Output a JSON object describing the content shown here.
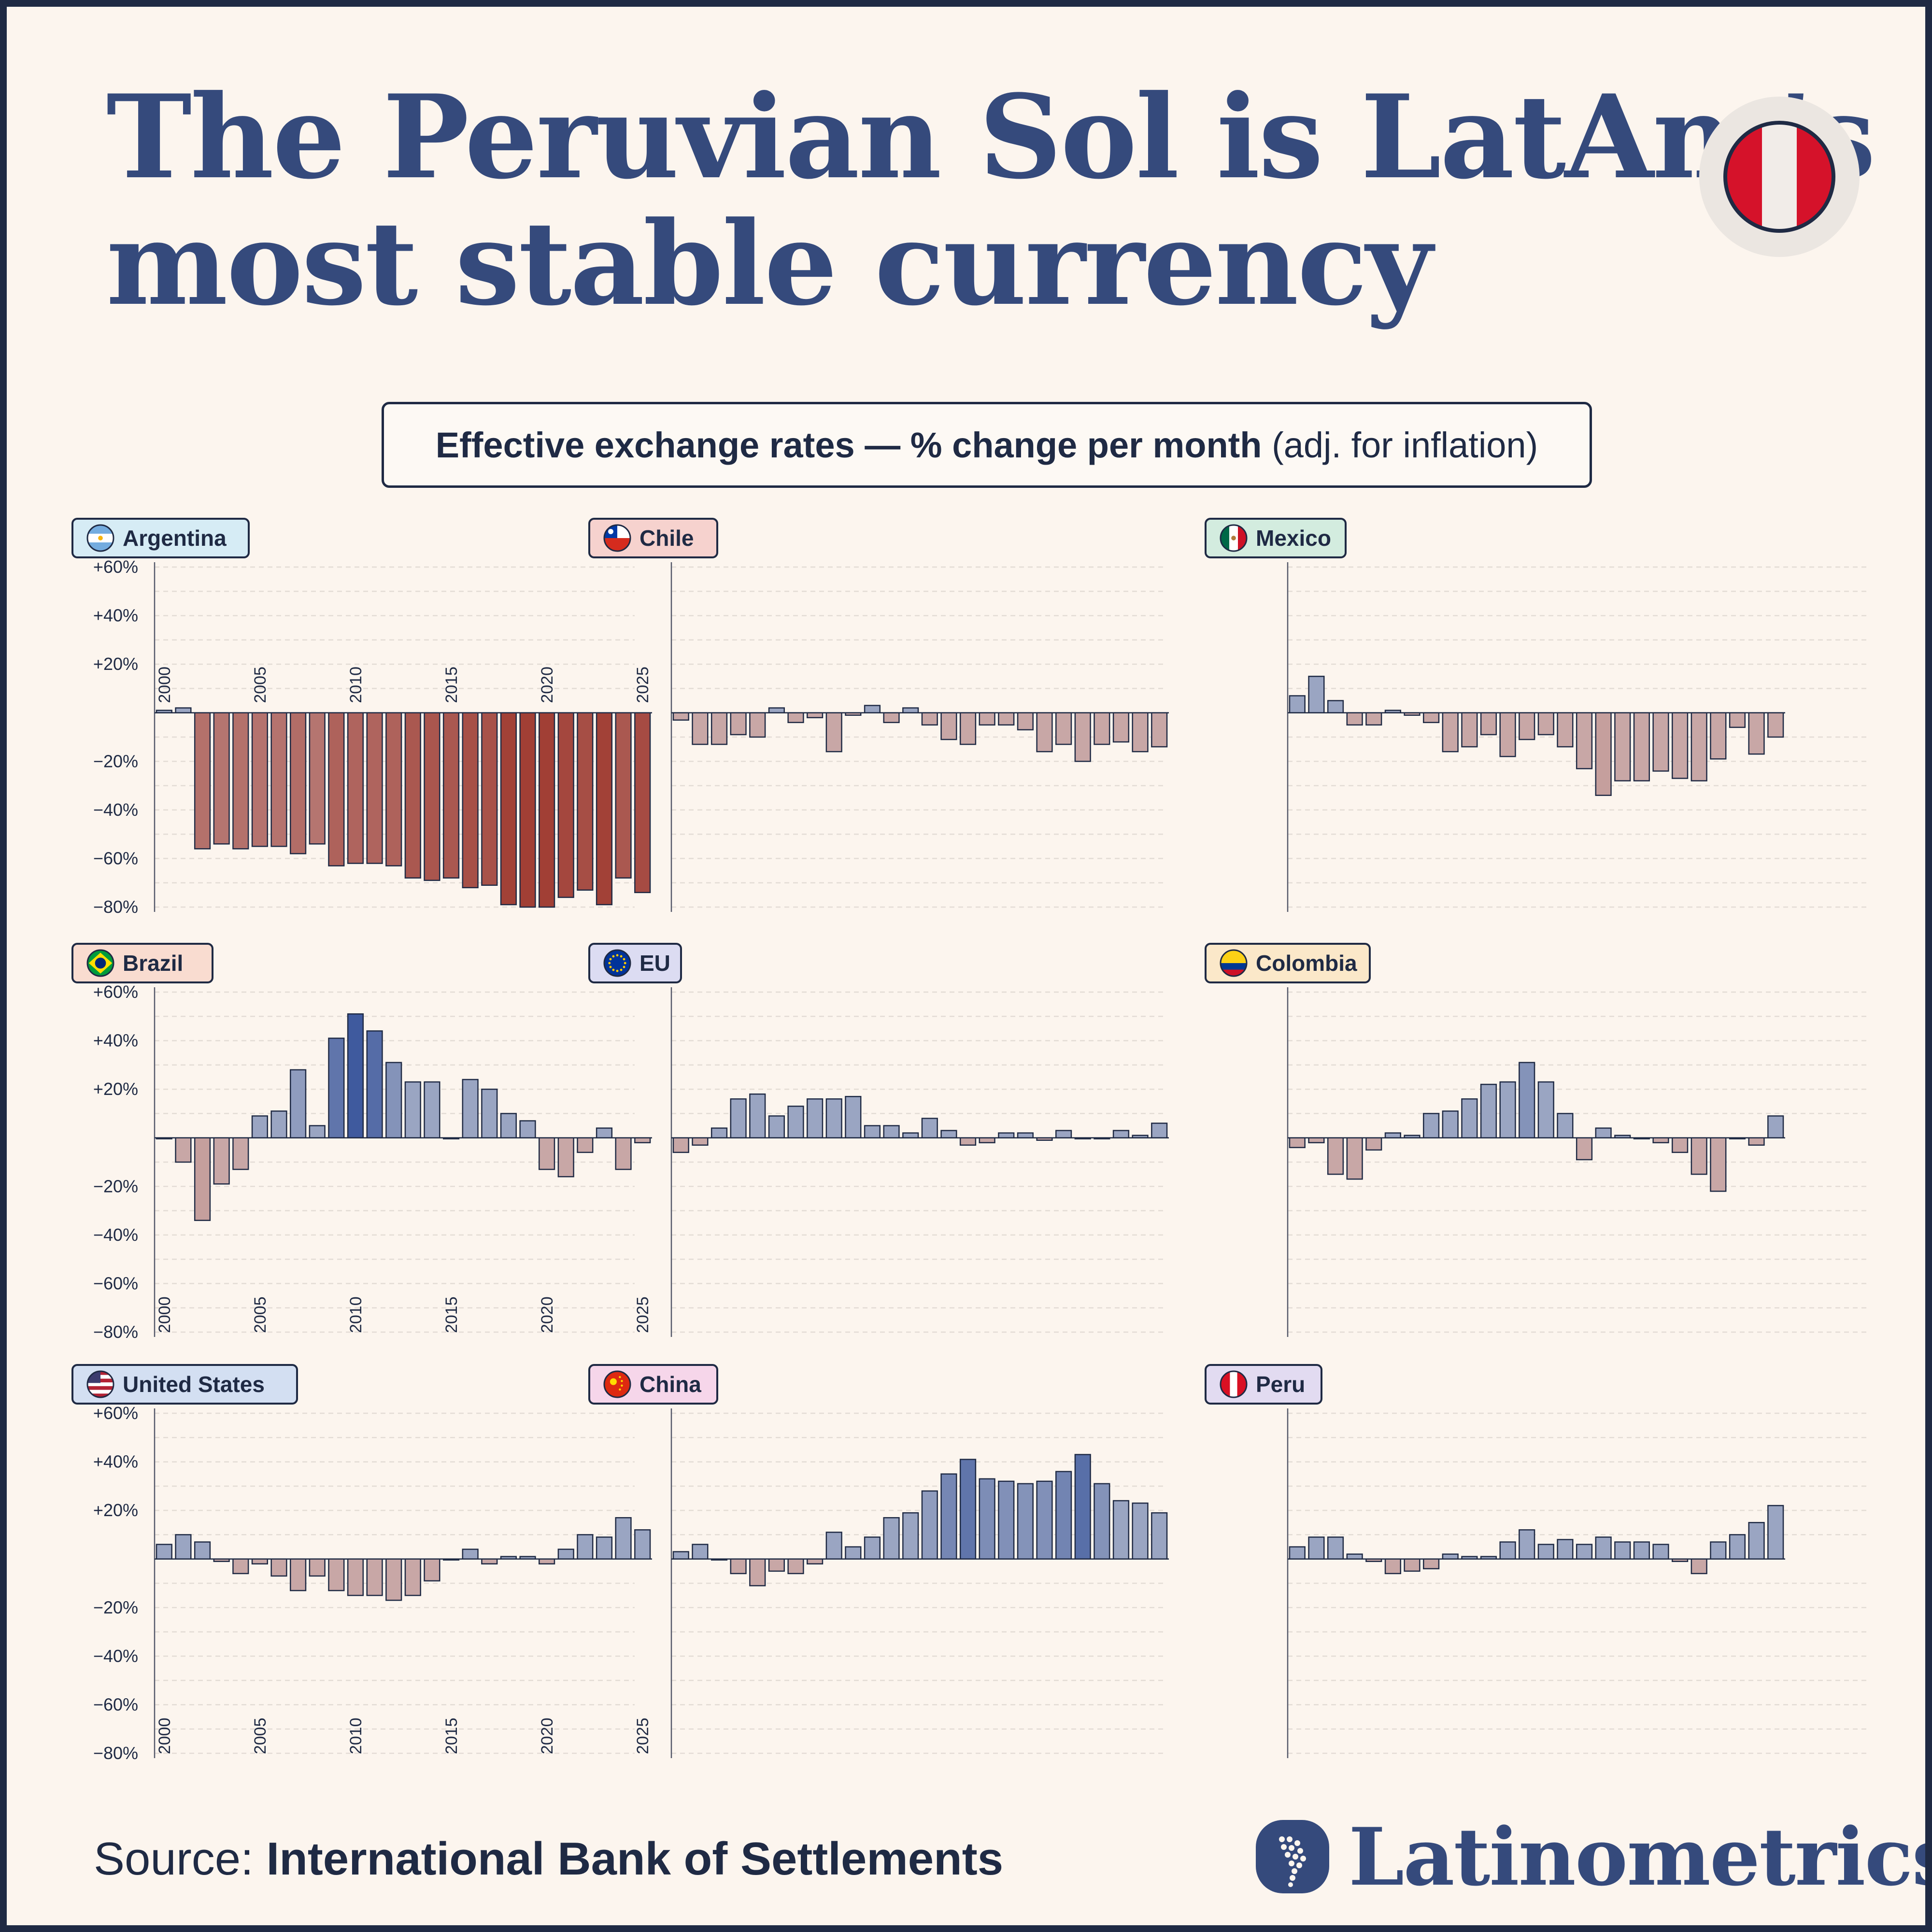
{
  "title": {
    "line1": "The Peruvian Sol is LatAm’s",
    "line2": "most stable currency"
  },
  "subtitle": {
    "bold": "Effective exchange rates — % change per month",
    "normal": "(adj. for inflation)"
  },
  "footer": {
    "source_label": "Source:",
    "source_name": "International Bank of Settlements",
    "brand": "Latinometrics"
  },
  "colors": {
    "positive": "#9aa5c2",
    "positive_strong": "#3f5a9e",
    "negative": "#c8a7a6",
    "negative_strong": "#a13f35",
    "text": "#1f2a44",
    "title": "#354a7c",
    "background": "#fcf5ee"
  },
  "chart_data": [
    {
      "type": "bar",
      "country": "Argentina",
      "flag": "argentina-flag-icon",
      "label_color": "#d6ecf5",
      "x": [
        2000,
        2001,
        2002,
        2003,
        2004,
        2005,
        2006,
        2007,
        2008,
        2009,
        2010,
        2011,
        2012,
        2013,
        2014,
        2015,
        2016,
        2017,
        2018,
        2019,
        2020,
        2021,
        2022,
        2023,
        2024,
        2025
      ],
      "values": [
        1,
        2,
        -56,
        -54,
        -56,
        -55,
        -55,
        -58,
        -54,
        -63,
        -62,
        -62,
        -63,
        -68,
        -69,
        -68,
        -72,
        -71,
        -79,
        -80,
        -80,
        -76,
        -73,
        -79,
        -68,
        -74
      ],
      "ylim": [
        -80,
        60
      ],
      "yticks": [
        "+60%",
        "+40%",
        "+20%",
        "−20%",
        "−40%",
        "−60%",
        "−80%"
      ],
      "xticks": [
        "2000",
        "2005",
        "2010",
        "2015",
        "2020",
        "2025"
      ]
    },
    {
      "type": "bar",
      "country": "Chile",
      "flag": "chile-flag-icon",
      "label_color": "#f6d2ce",
      "x": [
        2000,
        2001,
        2002,
        2003,
        2004,
        2005,
        2006,
        2007,
        2008,
        2009,
        2010,
        2011,
        2012,
        2013,
        2014,
        2015,
        2016,
        2017,
        2018,
        2019,
        2020,
        2021,
        2022,
        2023,
        2024,
        2025
      ],
      "values": [
        -3,
        -13,
        -13,
        -9,
        -10,
        2,
        -4,
        -2,
        -16,
        -1,
        3,
        -4,
        2,
        -5,
        -11,
        -13,
        -5,
        -5,
        -7,
        -16,
        -13,
        -20,
        -13,
        -12,
        -16,
        -14
      ],
      "ylim": [
        -80,
        60
      ]
    },
    {
      "type": "bar",
      "country": "Mexico",
      "flag": "mexico-flag-icon",
      "label_color": "#d3ecdf",
      "x": [
        2000,
        2001,
        2002,
        2003,
        2004,
        2005,
        2006,
        2007,
        2008,
        2009,
        2010,
        2011,
        2012,
        2013,
        2014,
        2015,
        2016,
        2017,
        2018,
        2019,
        2020,
        2021,
        2022,
        2023,
        2024,
        2025
      ],
      "values": [
        7,
        15,
        5,
        -5,
        -5,
        1,
        -1,
        -4,
        -16,
        -14,
        -9,
        -18,
        -11,
        -9,
        -14,
        -23,
        -34,
        -28,
        -28,
        -24,
        -27,
        -28,
        -19,
        -6,
        -17,
        -10
      ],
      "ylim": [
        -80,
        60
      ]
    },
    {
      "type": "bar",
      "country": "Brazil",
      "flag": "brazil-flag-icon",
      "label_color": "#f9dcd0",
      "x": [
        2000,
        2001,
        2002,
        2003,
        2004,
        2005,
        2006,
        2007,
        2008,
        2009,
        2010,
        2011,
        2012,
        2013,
        2014,
        2015,
        2016,
        2017,
        2018,
        2019,
        2020,
        2021,
        2022,
        2023,
        2024,
        2025
      ],
      "values": [
        0,
        -10,
        -34,
        -19,
        -13,
        9,
        11,
        28,
        5,
        41,
        51,
        44,
        31,
        23,
        23,
        0,
        24,
        20,
        10,
        7,
        -13,
        -16,
        -6,
        4,
        -13,
        -2
      ],
      "ylim": [
        -80,
        60
      ],
      "yticks": [
        "+60%",
        "+40%",
        "+20%",
        "−20%",
        "−40%",
        "−60%",
        "−80%"
      ],
      "xticks": [
        "2000",
        "2005",
        "2010",
        "2015",
        "2020",
        "2025"
      ]
    },
    {
      "type": "bar",
      "country": "EU",
      "flag": "eu-flag-icon",
      "label_color": "#dcdcf2",
      "x": [
        2000,
        2001,
        2002,
        2003,
        2004,
        2005,
        2006,
        2007,
        2008,
        2009,
        2010,
        2011,
        2012,
        2013,
        2014,
        2015,
        2016,
        2017,
        2018,
        2019,
        2020,
        2021,
        2022,
        2023,
        2024,
        2025
      ],
      "values": [
        -6,
        -3,
        4,
        16,
        18,
        9,
        13,
        16,
        16,
        17,
        5,
        5,
        2,
        8,
        3,
        -3,
        -2,
        2,
        2,
        -1,
        3,
        0,
        0,
        3,
        1,
        6
      ],
      "ylim": [
        -80,
        60
      ]
    },
    {
      "type": "bar",
      "country": "Colombia",
      "flag": "colombia-flag-icon",
      "label_color": "#fbe8c9",
      "x": [
        2000,
        2001,
        2002,
        2003,
        2004,
        2005,
        2006,
        2007,
        2008,
        2009,
        2010,
        2011,
        2012,
        2013,
        2014,
        2015,
        2016,
        2017,
        2018,
        2019,
        2020,
        2021,
        2022,
        2023,
        2024,
        2025
      ],
      "values": [
        -4,
        -2,
        -15,
        -17,
        -5,
        2,
        1,
        10,
        11,
        16,
        22,
        23,
        31,
        23,
        10,
        -9,
        4,
        1,
        0,
        -2,
        -6,
        -15,
        -22,
        0,
        -3,
        9
      ],
      "ylim": [
        -80,
        60
      ]
    },
    {
      "type": "bar",
      "country": "United States",
      "flag": "us-flag-icon",
      "label_color": "#d3dff2",
      "x": [
        2000,
        2001,
        2002,
        2003,
        2004,
        2005,
        2006,
        2007,
        2008,
        2009,
        2010,
        2011,
        2012,
        2013,
        2014,
        2015,
        2016,
        2017,
        2018,
        2019,
        2020,
        2021,
        2022,
        2023,
        2024,
        2025
      ],
      "values": [
        6,
        10,
        7,
        -1,
        -6,
        -2,
        -7,
        -13,
        -7,
        -13,
        -15,
        -15,
        -17,
        -15,
        -9,
        0,
        4,
        -2,
        1,
        1,
        -2,
        4,
        10,
        9,
        17,
        12
      ],
      "ylim": [
        -80,
        60
      ],
      "yticks": [
        "+60%",
        "+40%",
        "+20%",
        "−20%",
        "−40%",
        "−60%",
        "−80%"
      ],
      "xticks": [
        "2000",
        "2005",
        "2010",
        "2015",
        "2020",
        "2025"
      ]
    },
    {
      "type": "bar",
      "country": "China",
      "flag": "china-flag-icon",
      "label_color": "#f6d6ea",
      "x": [
        2000,
        2001,
        2002,
        2003,
        2004,
        2005,
        2006,
        2007,
        2008,
        2009,
        2010,
        2011,
        2012,
        2013,
        2014,
        2015,
        2016,
        2017,
        2018,
        2019,
        2020,
        2021,
        2022,
        2023,
        2024,
        2025
      ],
      "values": [
        3,
        6,
        0,
        -6,
        -11,
        -5,
        -6,
        -2,
        11,
        5,
        9,
        17,
        19,
        28,
        35,
        41,
        33,
        32,
        31,
        32,
        36,
        43,
        31,
        24,
        23,
        19
      ],
      "ylim": [
        -80,
        60
      ]
    },
    {
      "type": "bar",
      "country": "Peru",
      "flag": "peru-flag-icon",
      "label_color": "#e2dbf1",
      "x": [
        2000,
        2001,
        2002,
        2003,
        2004,
        2005,
        2006,
        2007,
        2008,
        2009,
        2010,
        2011,
        2012,
        2013,
        2014,
        2015,
        2016,
        2017,
        2018,
        2019,
        2020,
        2021,
        2022,
        2023,
        2024,
        2025
      ],
      "values": [
        5,
        9,
        9,
        2,
        -1,
        -6,
        -5,
        -4,
        2,
        1,
        1,
        7,
        12,
        6,
        8,
        6,
        9,
        7,
        7,
        6,
        -1,
        -6,
        7,
        10,
        15,
        22
      ],
      "ylim": [
        -80,
        60
      ]
    }
  ]
}
